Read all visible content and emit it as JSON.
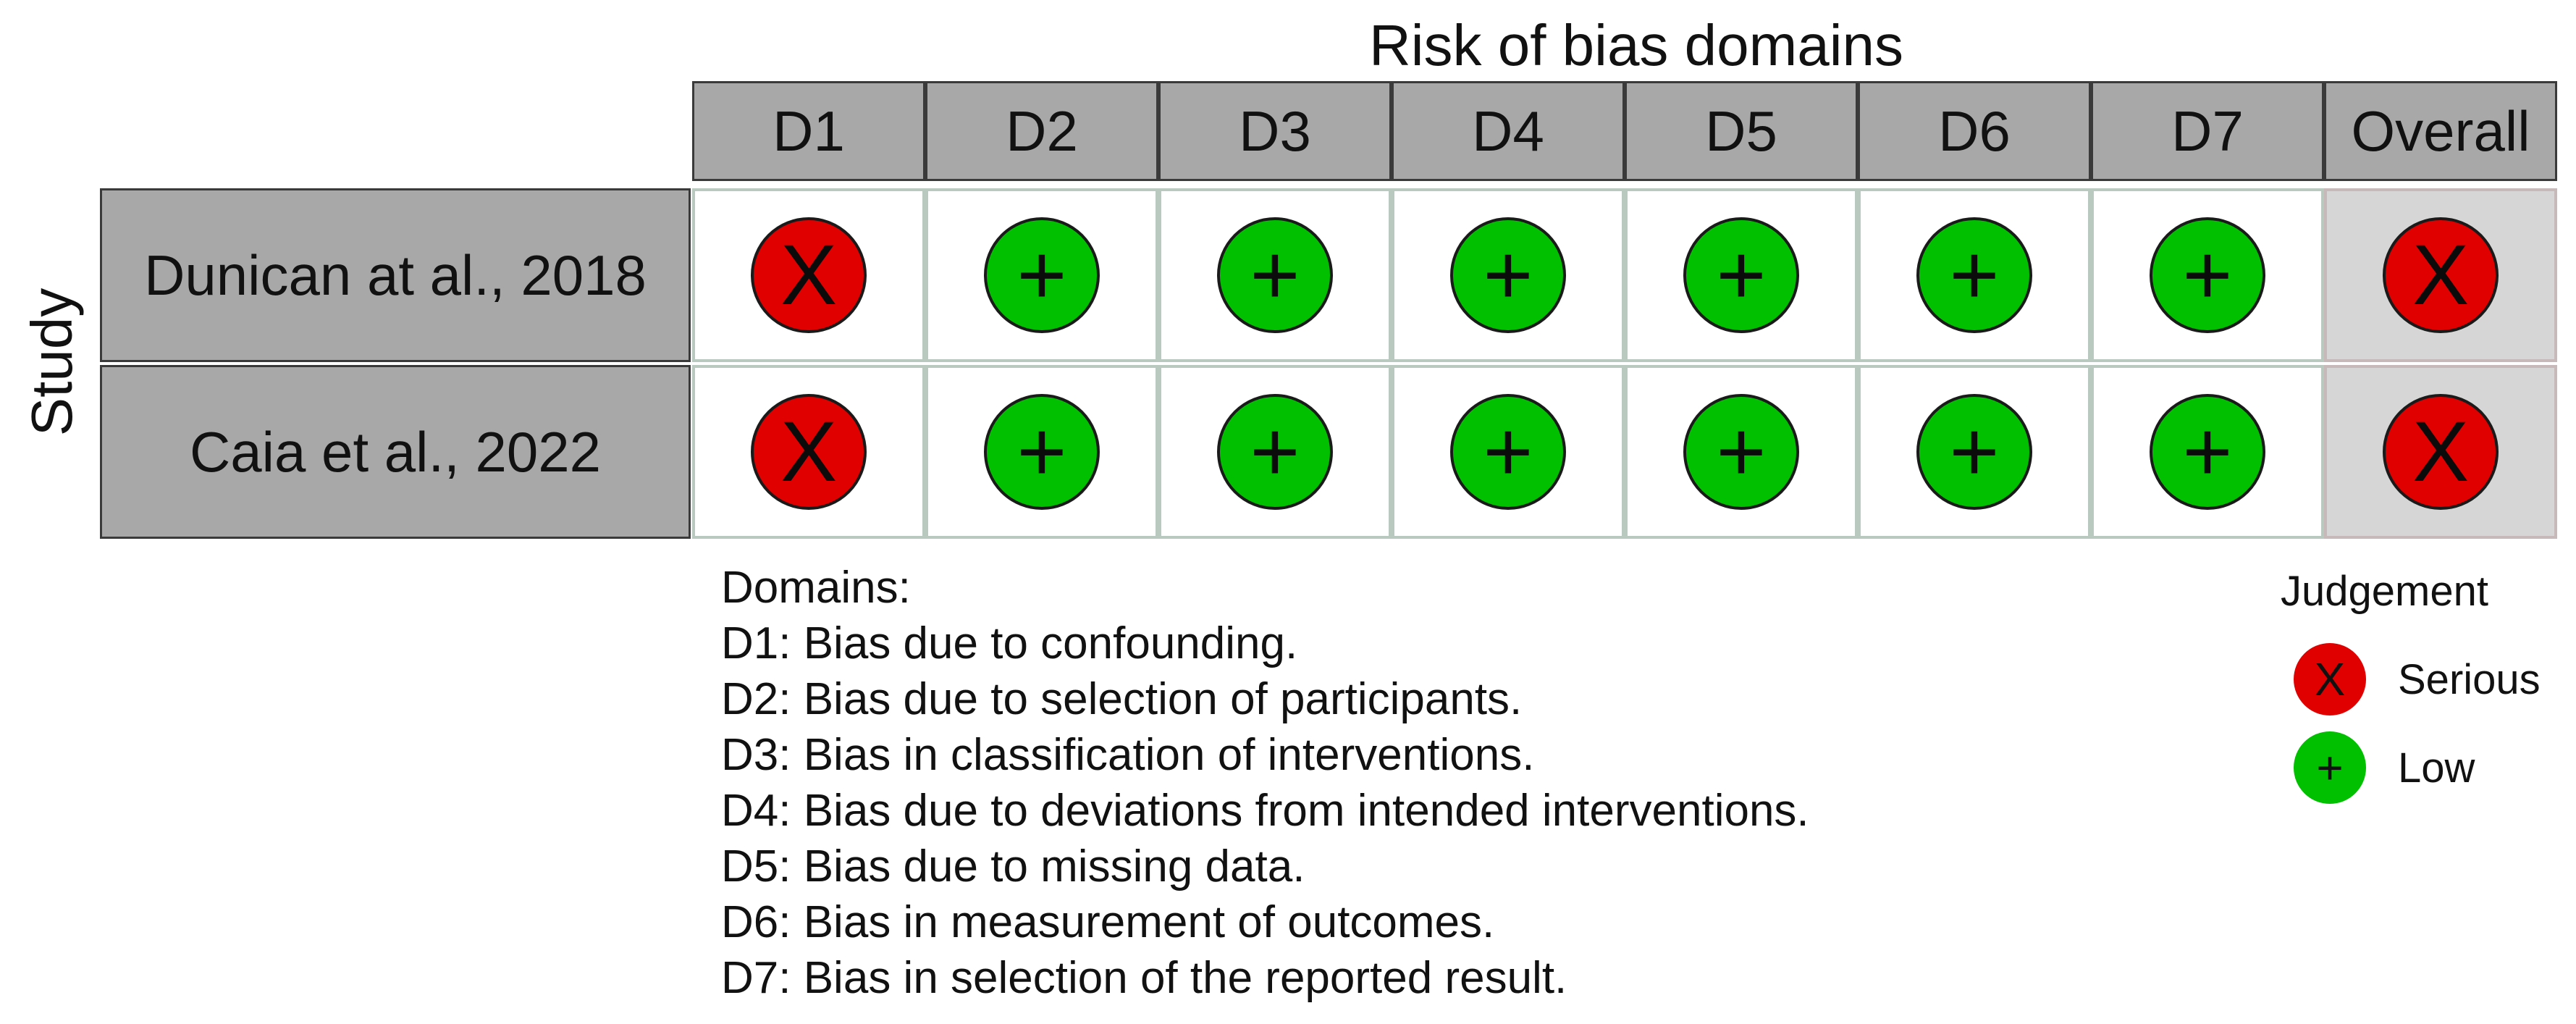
{
  "title": "Risk of bias domains",
  "axis_label": "Study",
  "domains_header": [
    "D1",
    "D2",
    "D3",
    "D4",
    "D5",
    "D6",
    "D7",
    "Overall"
  ],
  "studies": [
    {
      "name": "Dunican at al., 2018",
      "judgements": [
        "Serious",
        "Low",
        "Low",
        "Low",
        "Low",
        "Low",
        "Low",
        "Serious"
      ]
    },
    {
      "name": "Caia et al., 2022",
      "judgements": [
        "Serious",
        "Low",
        "Low",
        "Low",
        "Low",
        "Low",
        "Low",
        "Serious"
      ]
    }
  ],
  "domains_legend": {
    "title": "Domains:",
    "items": [
      "D1: Bias due to confounding.",
      "D2: Bias due to selection of participants.",
      "D3: Bias in classification of interventions.",
      "D4: Bias due to deviations from intended interventions.",
      "D5: Bias due to missing data.",
      "D6: Bias in measurement of outcomes.",
      "D7: Bias in selection of the reported result."
    ]
  },
  "judgement_legend": {
    "title": "Judgement",
    "items": [
      {
        "label": "Serious",
        "symbol": "X",
        "color": "#e00000"
      },
      {
        "label": "Low",
        "symbol": "+",
        "color": "#00c000"
      }
    ]
  },
  "colors": {
    "serious": "#e00000",
    "low": "#00c000",
    "header_fill": "#a8a8a8",
    "overall_fill": "#d6d6d6"
  }
}
